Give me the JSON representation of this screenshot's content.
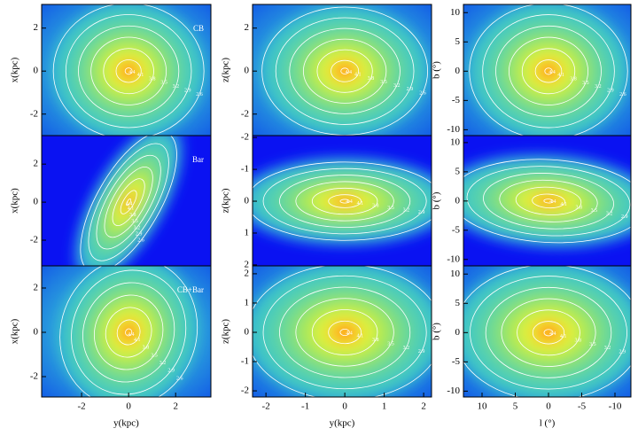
{
  "chart_data": [
    {
      "type": "contour",
      "annotation": "CB",
      "ylabel": "x(kpc)",
      "xlim": [
        -3.7,
        3.5
      ],
      "ylim": [
        -3.0,
        3.1
      ],
      "yticks": [
        -2,
        0,
        2
      ],
      "contour_levels": [
        2.6,
        2.9,
        3.2,
        3.5,
        3.8,
        4.1,
        4.4
      ]
    },
    {
      "type": "contour",
      "ylabel": "z(kpc)",
      "xlim": [
        -2.34,
        2.2
      ],
      "ylim": [
        -3.0,
        3.1
      ],
      "yticks": [
        -2,
        0,
        2
      ],
      "contour_levels": [
        2.6,
        2.9,
        3.2,
        3.5,
        3.8,
        4.1,
        4.4
      ]
    },
    {
      "type": "contour",
      "ylabel": "b (°)",
      "xlim": [
        12.8,
        -12.4
      ],
      "ylim": [
        -11.0,
        11.4
      ],
      "yticks": [
        -10,
        -5,
        0,
        5,
        10
      ],
      "contour_levels": [
        2.6,
        2.9,
        3.2,
        3.5,
        3.8,
        4.1,
        4.4
      ]
    },
    {
      "type": "contour",
      "annotation": "Bar",
      "ylabel": "x(kpc)",
      "xlim": [
        -3.7,
        3.5
      ],
      "ylim": [
        -3.35,
        3.5
      ],
      "yticks": [
        -2,
        0,
        2
      ],
      "contour_levels": [
        2.6,
        2.9,
        3.2,
        3.5,
        3.8,
        4.1,
        4.4
      ]
    },
    {
      "type": "contour",
      "ylabel": "z(kpc)",
      "xlim": [
        -2.34,
        2.2
      ],
      "ylim": [
        2.03,
        -2.06
      ],
      "yticks": [
        -2,
        -1,
        0,
        1,
        2
      ],
      "contour_levels": [
        2.6,
        2.9,
        3.2,
        3.5,
        3.8,
        4.1,
        4.4
      ]
    },
    {
      "type": "contour",
      "ylabel": "b (°)",
      "xlim": [
        12.8,
        -12.4
      ],
      "ylim": [
        -11.1,
        11.2
      ],
      "yticks": [
        -10,
        -5,
        0,
        5,
        10
      ],
      "contour_levels": [
        2.6,
        2.9,
        3.2,
        3.5,
        3.8,
        4.1,
        4.4
      ]
    },
    {
      "type": "contour",
      "annotation": "CB+Bar",
      "ylabel": "x(kpc)",
      "xlabel": "y(kpc)",
      "xlim": [
        -3.7,
        3.5
      ],
      "ylim": [
        -2.92,
        3.0
      ],
      "xticks": [
        -2,
        0,
        2
      ],
      "yticks": [
        -2,
        0,
        2
      ],
      "contour_levels": [
        2.6,
        2.9,
        3.2,
        3.5,
        3.8,
        4.1,
        4.4
      ]
    },
    {
      "type": "contour",
      "ylabel": "z(kpc)",
      "xlabel": "y(kpc)",
      "xlim": [
        -2.34,
        2.2
      ],
      "ylim": [
        -2.21,
        2.27
      ],
      "xticks": [
        -2,
        -1,
        0,
        1,
        2
      ],
      "yticks": [
        -2,
        -1,
        0,
        1,
        2
      ],
      "contour_levels": [
        2.6,
        2.9,
        3.2,
        3.5,
        3.8,
        4.1,
        4.4
      ]
    },
    {
      "type": "contour",
      "ylabel": "b (°)",
      "xlabel": "l (°)",
      "xlim": [
        12.8,
        -12.4
      ],
      "ylim": [
        -11.0,
        11.4
      ],
      "xticks": [
        10,
        5,
        0,
        -5,
        -10
      ],
      "yticks": [
        -10,
        -5,
        0,
        5,
        10
      ],
      "contour_levels": [
        2.6,
        2.9,
        3.2,
        3.5,
        3.8,
        4.1,
        4.4
      ]
    }
  ]
}
